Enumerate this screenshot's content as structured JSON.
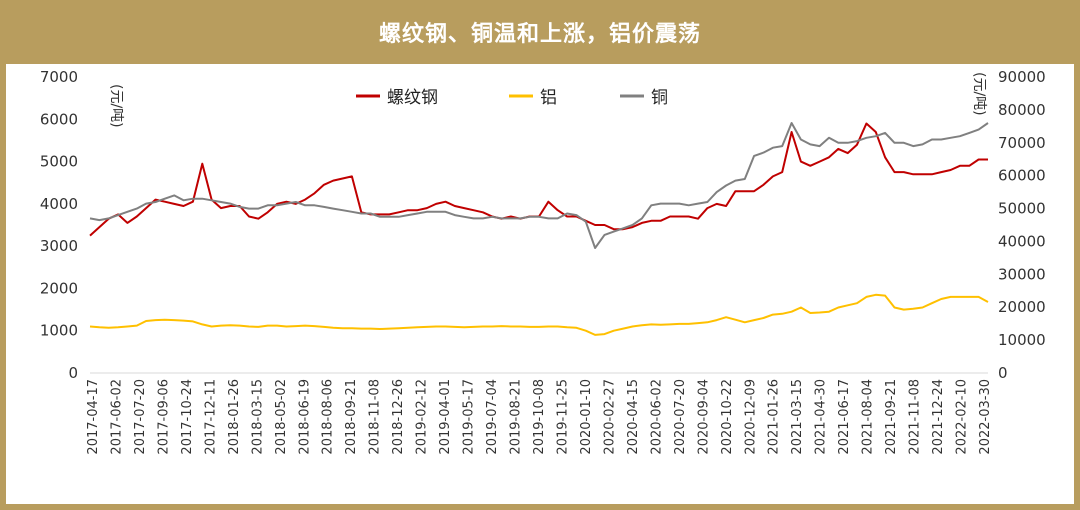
{
  "title": "螺纹钢、铜温和上涨，铝价震荡",
  "chart_data": {
    "type": "line",
    "left_axis": {
      "unit": "(元/吨)",
      "range": [
        0,
        7000
      ],
      "ticks": [
        0,
        1000,
        2000,
        3000,
        4000,
        5000,
        6000,
        7000
      ]
    },
    "right_axis": {
      "unit": "(元/吨)",
      "range": [
        0,
        90000
      ],
      "ticks": [
        0,
        10000,
        20000,
        30000,
        40000,
        50000,
        60000,
        70000,
        80000,
        90000
      ]
    },
    "x_tick_labels": [
      "2017-04-17",
      "2017-06-02",
      "2017-07-20",
      "2017-09-06",
      "2017-10-24",
      "2017-12-11",
      "2018-01-26",
      "2018-03-15",
      "2018-05-02",
      "2018-06-19",
      "2018-08-06",
      "2018-09-21",
      "2018-11-08",
      "2018-12-26",
      "2019-02-12",
      "2019-04-01",
      "2019-05-17",
      "2019-07-04",
      "2019-08-21",
      "2019-10-08",
      "2019-11-25",
      "2020-01-10",
      "2020-02-27",
      "2020-04-15",
      "2020-06-02",
      "2020-07-20",
      "2020-09-04",
      "2020-10-22",
      "2020-12-09",
      "2021-01-26",
      "2021-03-15",
      "2021-04-30",
      "2021-06-17",
      "2021-08-04",
      "2021-09-21",
      "2021-11-08",
      "2021-12-24",
      "2022-02-10",
      "2022-03-30"
    ],
    "grid": false,
    "legend_position": "top-center",
    "series": [
      {
        "name": "螺纹钢",
        "axis": "left",
        "color": "#c00000",
        "values": [
          3250,
          3450,
          3650,
          3750,
          3550,
          3700,
          3900,
          4100,
          4050,
          4000,
          3950,
          4050,
          4950,
          4100,
          3900,
          3950,
          3950,
          3700,
          3650,
          3800,
          4000,
          4050,
          4000,
          4100,
          4250,
          4450,
          4550,
          4600,
          4650,
          3800,
          3750,
          3750,
          3750,
          3800,
          3850,
          3850,
          3900,
          4000,
          4050,
          3950,
          3900,
          3850,
          3800,
          3700,
          3650,
          3700,
          3650,
          3700,
          3700,
          4050,
          3850,
          3700,
          3700,
          3600,
          3500,
          3500,
          3400,
          3400,
          3450,
          3550,
          3600,
          3600,
          3700,
          3700,
          3700,
          3650,
          3900,
          4000,
          3950,
          4300,
          4300,
          4300,
          4450,
          4650,
          4750,
          5700,
          5000,
          4900,
          5000,
          5100,
          5300,
          5200,
          5400,
          5900,
          5700,
          5100,
          4750,
          4750,
          4700,
          4700,
          4700,
          4750,
          4800,
          4900,
          4900,
          5050,
          5050
        ]
      },
      {
        "name": "铝",
        "axis": "left",
        "color": "#ffc000",
        "values": [
          1100,
          1080,
          1070,
          1080,
          1100,
          1120,
          1230,
          1250,
          1260,
          1250,
          1240,
          1220,
          1150,
          1100,
          1120,
          1130,
          1120,
          1100,
          1090,
          1120,
          1120,
          1100,
          1110,
          1120,
          1110,
          1090,
          1070,
          1060,
          1060,
          1050,
          1050,
          1040,
          1050,
          1060,
          1070,
          1080,
          1090,
          1100,
          1100,
          1090,
          1080,
          1090,
          1100,
          1100,
          1110,
          1100,
          1100,
          1090,
          1090,
          1100,
          1100,
          1080,
          1070,
          1000,
          900,
          920,
          1000,
          1050,
          1100,
          1130,
          1150,
          1140,
          1150,
          1160,
          1160,
          1180,
          1200,
          1250,
          1320,
          1260,
          1200,
          1250,
          1300,
          1380,
          1400,
          1450,
          1550,
          1420,
          1430,
          1450,
          1550,
          1600,
          1650,
          1800,
          1850,
          1830,
          1550,
          1500,
          1520,
          1550,
          1650,
          1750,
          1800,
          1800,
          1800,
          1800,
          1680
        ]
      },
      {
        "name": "铜",
        "axis": "right",
        "color": "#808080",
        "values": [
          47000,
          46500,
          47000,
          48000,
          49000,
          50000,
          51500,
          52000,
          53000,
          54000,
          52500,
          53000,
          53000,
          52500,
          52000,
          51500,
          50500,
          50000,
          50000,
          51000,
          51000,
          51500,
          52000,
          51000,
          51000,
          50500,
          50000,
          49500,
          49000,
          48500,
          48500,
          47500,
          47500,
          47500,
          48000,
          48500,
          49000,
          49000,
          49000,
          48000,
          47500,
          47000,
          47000,
          47500,
          47000,
          47000,
          47000,
          47500,
          47500,
          47000,
          47000,
          48500,
          48000,
          46000,
          38000,
          42000,
          43000,
          44000,
          45000,
          47000,
          51000,
          51500,
          51500,
          51500,
          51000,
          51500,
          52000,
          55000,
          57000,
          58500,
          59000,
          66000,
          67000,
          68500,
          69000,
          76000,
          71000,
          69500,
          69000,
          71500,
          70000,
          70000,
          70500,
          71500,
          72000,
          73000,
          70000,
          70000,
          69000,
          69500,
          71000,
          71000,
          71500,
          72000,
          73000,
          74000,
          76000
        ]
      }
    ]
  }
}
